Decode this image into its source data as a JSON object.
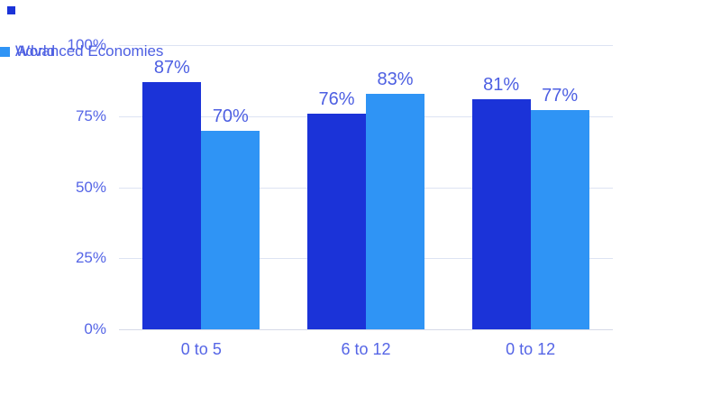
{
  "brand_mark": {
    "color": "#1b33d8"
  },
  "chart_data": {
    "type": "bar",
    "title": "",
    "categories": [
      "0 to 5",
      "6 to 12",
      "0 to 12"
    ],
    "series": [
      {
        "name": "Advanced Economies",
        "color": "#1b33d8",
        "values": [
          87,
          76,
          81
        ]
      },
      {
        "name": "World",
        "color": "#2f94f5",
        "values": [
          70,
          83,
          77
        ]
      }
    ],
    "value_suffix": "%",
    "data_labels": {
      "series_0": [
        "87%",
        "76%",
        "81%"
      ],
      "series_1": [
        "70%",
        "83%",
        "77%"
      ]
    },
    "y_axis": {
      "min": 0,
      "max": 100,
      "ticks": [
        "0%",
        "25%",
        "50%",
        "75%",
        "100%"
      ],
      "tick_values": [
        0,
        25,
        50,
        75,
        100
      ]
    },
    "grid": true,
    "legend_position": "top-center",
    "styles": {
      "label_color": "#4d5fe2",
      "axis_label_color": "#5565e6",
      "gridline_color": "#dde3f3",
      "baseline_color": "#d5dae8",
      "background": "#ffffff"
    }
  }
}
